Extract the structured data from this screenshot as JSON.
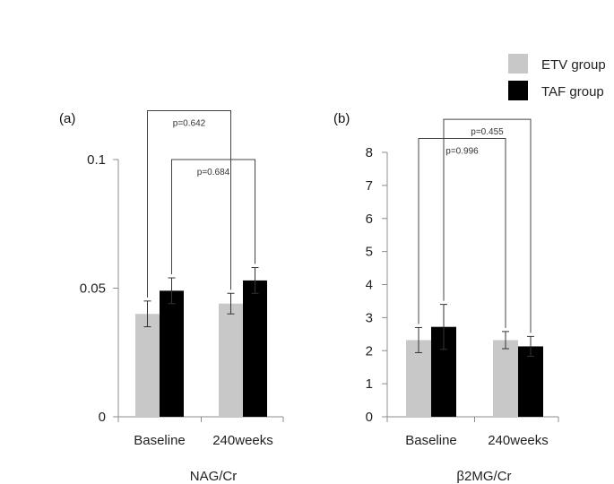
{
  "legend": {
    "entries": [
      {
        "label": "ETV group",
        "color": "#c8c8c8"
      },
      {
        "label": "TAF group",
        "color": "#000000"
      }
    ]
  },
  "chart_data": [
    {
      "type": "bar",
      "panel_label": "(a)",
      "xlabel": "NAG/Cr",
      "ylabel": "",
      "categories": [
        "Baseline",
        "240weeks"
      ],
      "yticks": [
        "0",
        "0.05",
        "0.1"
      ],
      "ylim": [
        0,
        0.1
      ],
      "grid": false,
      "series": [
        {
          "name": "ETV group",
          "color": "#c8c8c8",
          "values": [
            0.04,
            0.044
          ],
          "errors": [
            0.005,
            0.004
          ]
        },
        {
          "name": "TAF group",
          "color": "#000000",
          "values": [
            0.049,
            0.053
          ],
          "errors": [
            0.005,
            0.005
          ]
        }
      ],
      "annotations": [
        {
          "text": "p=0.642",
          "from": {
            "category": 0,
            "series": 0
          },
          "to": {
            "category": 1,
            "series": 0
          },
          "level": 0.119
        },
        {
          "text": "p=0.684",
          "from": {
            "category": 0,
            "series": 1
          },
          "to": {
            "category": 1,
            "series": 1
          },
          "level": 0.1
        }
      ]
    },
    {
      "type": "bar",
      "panel_label": "(b)",
      "xlabel": "β2MG/Cr",
      "ylabel": "",
      "categories": [
        "Baseline",
        "240weeks"
      ],
      "yticks": [
        "0",
        "1",
        "2",
        "3",
        "4",
        "5",
        "6",
        "7",
        "8"
      ],
      "ylim": [
        0,
        8
      ],
      "grid": false,
      "series": [
        {
          "name": "ETV group",
          "color": "#c8c8c8",
          "values": [
            2.32,
            2.32
          ],
          "errors": [
            0.38,
            0.26
          ]
        },
        {
          "name": "TAF group",
          "color": "#000000",
          "values": [
            2.72,
            2.13
          ],
          "errors": [
            0.68,
            0.3
          ]
        }
      ],
      "annotations": [
        {
          "text": "p=0.455",
          "from": {
            "category": 0,
            "series": 1
          },
          "to": {
            "category": 1,
            "series": 1
          },
          "level": 9.0
        },
        {
          "text": "p=0.996",
          "from": {
            "category": 0,
            "series": 0
          },
          "to": {
            "category": 1,
            "series": 0
          },
          "level": 8.42
        }
      ]
    }
  ]
}
